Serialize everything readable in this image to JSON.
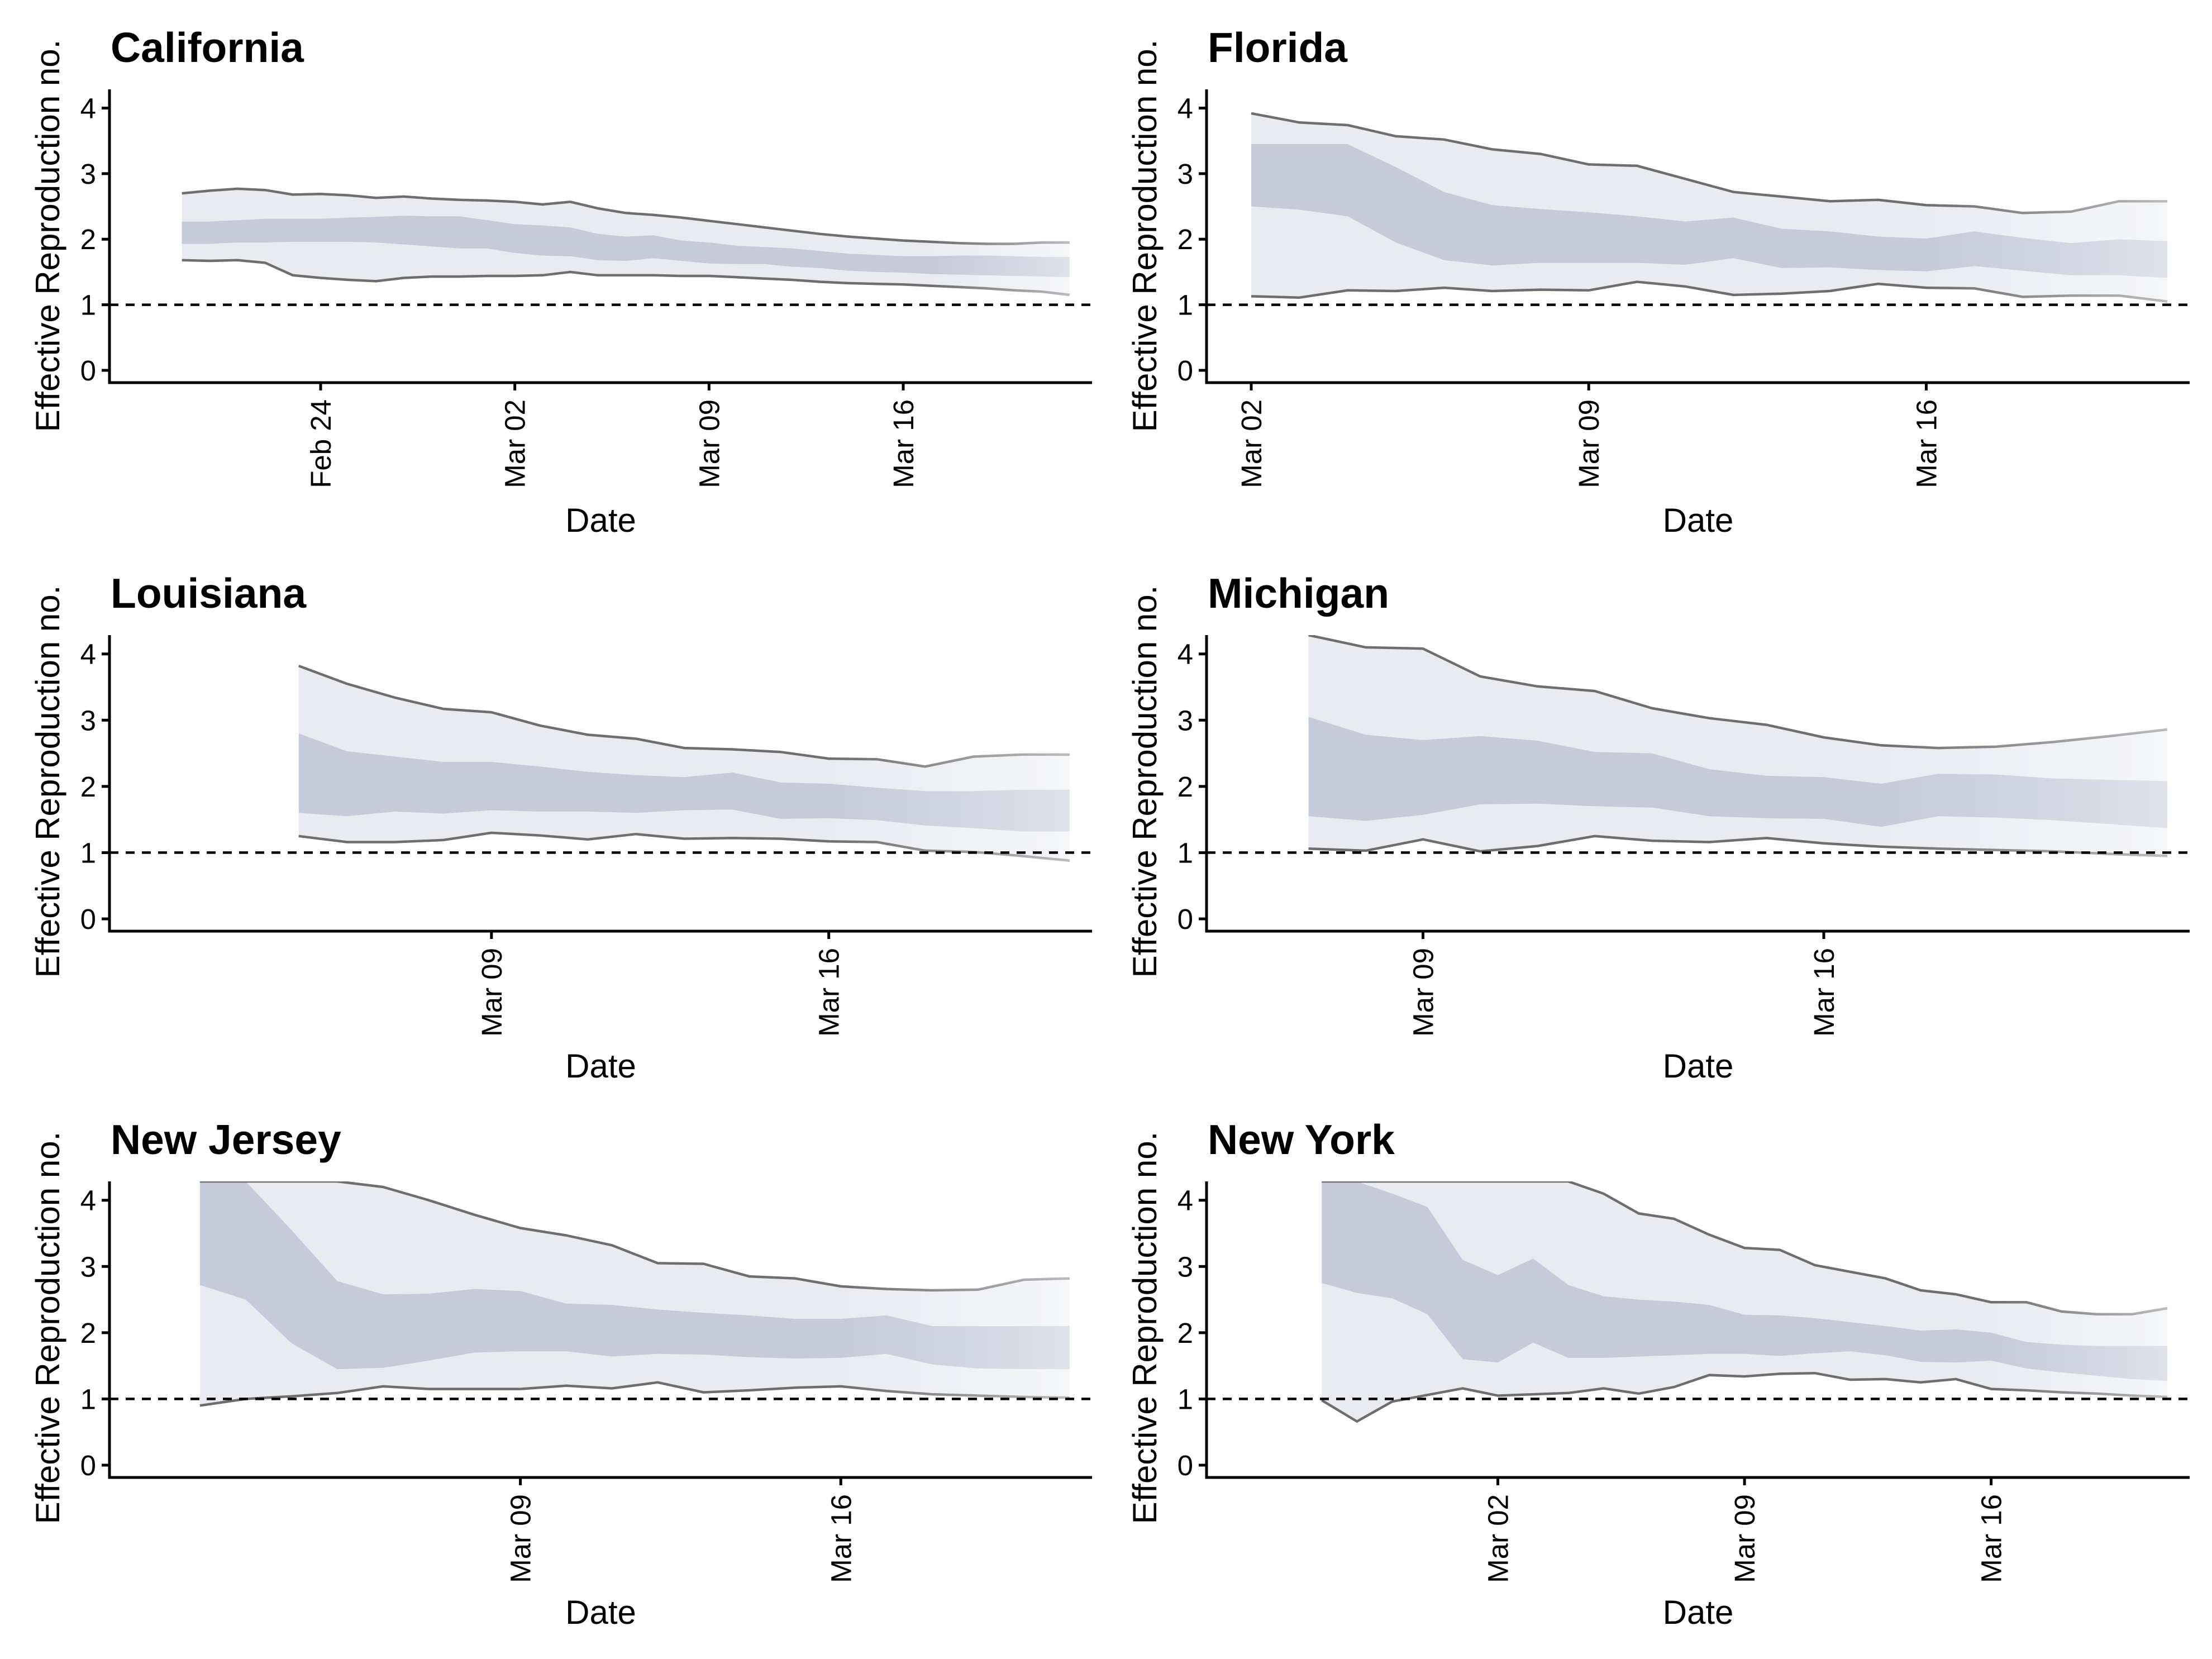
{
  "style": {
    "outer_band_color": "#e9ebf1",
    "inner_band_color": "#c6cadb",
    "ci_line_color": "#6e6e6e",
    "fade_color": "#ffffff"
  },
  "chart_data": [
    {
      "type": "area",
      "title": "California",
      "xlabel": "Date",
      "ylabel": "Effective Reproduction no.",
      "ylim": [
        0,
        4.2
      ],
      "yticks": [
        "0",
        "1",
        "2",
        "3",
        "4"
      ],
      "xlim": [
        "2020-02-18",
        "2020-03-22"
      ],
      "x_ticks": [
        {
          "date": "2020-02-24",
          "label": "Feb 24"
        },
        {
          "date": "2020-03-02",
          "label": "Mar 02"
        },
        {
          "date": "2020-03-09",
          "label": "Mar 09"
        },
        {
          "date": "2020-03-16",
          "label": "Mar 16"
        }
      ],
      "reference_line": 1,
      "x": [
        "2020-02-19",
        "2020-02-20",
        "2020-02-21",
        "2020-02-22",
        "2020-02-23",
        "2020-02-24",
        "2020-02-25",
        "2020-02-26",
        "2020-02-27",
        "2020-02-28",
        "2020-02-29",
        "2020-03-01",
        "2020-03-02",
        "2020-03-03",
        "2020-03-04",
        "2020-03-05",
        "2020-03-06",
        "2020-03-07",
        "2020-03-08",
        "2020-03-09",
        "2020-03-10",
        "2020-03-11",
        "2020-03-12",
        "2020-03-13",
        "2020-03-14",
        "2020-03-15",
        "2020-03-16",
        "2020-03-17",
        "2020-03-18",
        "2020-03-19",
        "2020-03-20",
        "2020-03-21",
        "2020-03-22"
      ],
      "outer_upper": [
        2.7,
        2.74,
        2.77,
        2.75,
        2.68,
        2.69,
        2.67,
        2.63,
        2.65,
        2.62,
        2.6,
        2.59,
        2.57,
        2.53,
        2.57,
        2.47,
        2.4,
        2.37,
        2.33,
        2.28,
        2.23,
        2.18,
        2.13,
        2.08,
        2.04,
        2.01,
        1.98,
        1.96,
        1.94,
        1.93,
        1.93,
        1.95,
        1.95
      ],
      "outer_lower": [
        1.68,
        1.67,
        1.68,
        1.64,
        1.45,
        1.41,
        1.38,
        1.36,
        1.41,
        1.43,
        1.43,
        1.44,
        1.44,
        1.45,
        1.5,
        1.45,
        1.45,
        1.45,
        1.44,
        1.44,
        1.42,
        1.4,
        1.38,
        1.35,
        1.33,
        1.32,
        1.31,
        1.29,
        1.27,
        1.25,
        1.22,
        1.2,
        1.15
      ],
      "inner_upper": [
        2.27,
        2.27,
        2.29,
        2.31,
        2.31,
        2.31,
        2.33,
        2.34,
        2.36,
        2.35,
        2.35,
        2.29,
        2.23,
        2.21,
        2.18,
        2.08,
        2.04,
        2.06,
        1.98,
        1.95,
        1.9,
        1.88,
        1.86,
        1.82,
        1.78,
        1.76,
        1.74,
        1.74,
        1.75,
        1.75,
        1.74,
        1.73,
        1.73
      ],
      "inner_lower": [
        1.93,
        1.93,
        1.95,
        1.95,
        1.96,
        1.96,
        1.96,
        1.95,
        1.92,
        1.89,
        1.86,
        1.86,
        1.79,
        1.75,
        1.74,
        1.68,
        1.67,
        1.71,
        1.67,
        1.63,
        1.62,
        1.62,
        1.58,
        1.56,
        1.52,
        1.5,
        1.49,
        1.47,
        1.46,
        1.45,
        1.44,
        1.43,
        1.42
      ]
    },
    {
      "type": "area",
      "title": "Florida",
      "xlabel": "Date",
      "ylabel": "Effective Reproduction no.",
      "ylim": [
        0,
        4.2
      ],
      "yticks": [
        "0",
        "1",
        "2",
        "3",
        "4"
      ],
      "xlim": [
        "2020-03-02",
        "2020-03-21"
      ],
      "x_ticks": [
        {
          "date": "2020-03-02",
          "label": "Mar 02"
        },
        {
          "date": "2020-03-09",
          "label": "Mar 09"
        },
        {
          "date": "2020-03-16",
          "label": "Mar 16"
        }
      ],
      "reference_line": 1,
      "x": [
        "2020-03-02",
        "2020-03-03",
        "2020-03-04",
        "2020-03-05",
        "2020-03-06",
        "2020-03-07",
        "2020-03-08",
        "2020-03-09",
        "2020-03-10",
        "2020-03-11",
        "2020-03-12",
        "2020-03-13",
        "2020-03-14",
        "2020-03-15",
        "2020-03-16",
        "2020-03-17",
        "2020-03-18",
        "2020-03-19",
        "2020-03-20",
        "2020-03-21"
      ],
      "outer_upper": [
        3.92,
        3.78,
        3.74,
        3.57,
        3.52,
        3.37,
        3.3,
        3.14,
        3.12,
        2.92,
        2.72,
        2.65,
        2.58,
        2.6,
        2.52,
        2.5,
        2.4,
        2.42,
        2.58,
        2.58
      ],
      "outer_lower": [
        1.13,
        1.11,
        1.22,
        1.21,
        1.26,
        1.21,
        1.23,
        1.22,
        1.35,
        1.28,
        1.15,
        1.17,
        1.21,
        1.32,
        1.26,
        1.25,
        1.12,
        1.14,
        1.14,
        1.05
      ],
      "inner_upper": [
        3.45,
        3.45,
        3.45,
        3.1,
        2.72,
        2.52,
        2.46,
        2.41,
        2.35,
        2.27,
        2.33,
        2.16,
        2.12,
        2.04,
        2.01,
        2.12,
        2.02,
        1.94,
        2.0,
        1.97
      ],
      "inner_lower": [
        2.5,
        2.45,
        2.35,
        1.95,
        1.68,
        1.6,
        1.64,
        1.64,
        1.64,
        1.61,
        1.71,
        1.56,
        1.57,
        1.53,
        1.51,
        1.59,
        1.52,
        1.45,
        1.45,
        1.41
      ]
    },
    {
      "type": "area",
      "title": "Louisiana",
      "xlabel": "Date",
      "ylabel": "Effective Reproduction no.",
      "ylim": [
        0,
        4.2
      ],
      "yticks": [
        "0",
        "1",
        "2",
        "3",
        "4"
      ],
      "xlim": [
        "2020-03-02",
        "2020-03-21"
      ],
      "x_ticks": [
        {
          "date": "2020-03-09",
          "label": "Mar 09"
        },
        {
          "date": "2020-03-16",
          "label": "Mar 16"
        }
      ],
      "reference_line": 1,
      "x": [
        "2020-03-05",
        "2020-03-06",
        "2020-03-07",
        "2020-03-08",
        "2020-03-09",
        "2020-03-10",
        "2020-03-11",
        "2020-03-12",
        "2020-03-13",
        "2020-03-14",
        "2020-03-15",
        "2020-03-16",
        "2020-03-17",
        "2020-03-18",
        "2020-03-19",
        "2020-03-20",
        "2020-03-21"
      ],
      "outer_upper": [
        3.82,
        3.55,
        3.34,
        3.17,
        3.12,
        2.92,
        2.78,
        2.72,
        2.58,
        2.56,
        2.52,
        2.42,
        2.41,
        2.3,
        2.45,
        2.48,
        2.48
      ],
      "outer_lower": [
        1.25,
        1.16,
        1.16,
        1.19,
        1.3,
        1.26,
        1.2,
        1.28,
        1.21,
        1.22,
        1.21,
        1.17,
        1.16,
        1.03,
        1.01,
        0.95,
        0.88
      ],
      "inner_upper": [
        2.8,
        2.53,
        2.45,
        2.37,
        2.37,
        2.3,
        2.22,
        2.17,
        2.14,
        2.21,
        2.06,
        2.04,
        1.98,
        1.93,
        1.93,
        1.95,
        1.95
      ],
      "inner_lower": [
        1.6,
        1.55,
        1.62,
        1.59,
        1.64,
        1.62,
        1.62,
        1.6,
        1.64,
        1.65,
        1.51,
        1.52,
        1.49,
        1.41,
        1.37,
        1.32,
        1.32
      ]
    },
    {
      "type": "area",
      "title": "Michigan",
      "xlabel": "Date",
      "ylabel": "Effective Reproduction no.",
      "ylim": [
        0,
        4.2
      ],
      "yticks": [
        "0",
        "1",
        "2",
        "3",
        "4"
      ],
      "xlim": [
        "2020-03-06",
        "2020-03-22"
      ],
      "x_ticks": [
        {
          "date": "2020-03-09",
          "label": "Mar 09"
        },
        {
          "date": "2020-03-16",
          "label": "Mar 16"
        }
      ],
      "reference_line": 1,
      "x": [
        "2020-03-07",
        "2020-03-08",
        "2020-03-09",
        "2020-03-10",
        "2020-03-11",
        "2020-03-12",
        "2020-03-13",
        "2020-03-14",
        "2020-03-15",
        "2020-03-16",
        "2020-03-17",
        "2020-03-18",
        "2020-03-19",
        "2020-03-20",
        "2020-03-21",
        "2020-03-22"
      ],
      "outer_upper": [
        4.3,
        4.1,
        4.08,
        3.66,
        3.51,
        3.44,
        3.18,
        3.03,
        2.93,
        2.74,
        2.62,
        2.58,
        2.6,
        2.67,
        2.76,
        2.86
      ],
      "outer_lower": [
        1.06,
        1.03,
        1.2,
        1.02,
        1.1,
        1.25,
        1.18,
        1.16,
        1.22,
        1.14,
        1.09,
        1.06,
        1.04,
        1.02,
        0.98,
        0.95
      ],
      "inner_upper": [
        3.05,
        2.78,
        2.7,
        2.76,
        2.69,
        2.52,
        2.5,
        2.26,
        2.16,
        2.14,
        2.04,
        2.19,
        2.18,
        2.12,
        2.1,
        2.08
      ],
      "inner_lower": [
        1.55,
        1.48,
        1.57,
        1.73,
        1.74,
        1.7,
        1.68,
        1.55,
        1.52,
        1.51,
        1.39,
        1.55,
        1.53,
        1.49,
        1.43,
        1.37
      ]
    },
    {
      "type": "area",
      "title": "New Jersey",
      "xlabel": "Date",
      "ylabel": "Effective Reproduction no.",
      "ylim": [
        0,
        4.2
      ],
      "yticks": [
        "0",
        "1",
        "2",
        "3",
        "4"
      ],
      "xlim": [
        "2020-03-01",
        "2020-03-21"
      ],
      "x_ticks": [
        {
          "date": "2020-03-09",
          "label": "Mar 09"
        },
        {
          "date": "2020-03-16",
          "label": "Mar 16"
        }
      ],
      "reference_line": 1,
      "x": [
        "2020-03-02",
        "2020-03-03",
        "2020-03-04",
        "2020-03-05",
        "2020-03-06",
        "2020-03-07",
        "2020-03-08",
        "2020-03-09",
        "2020-03-10",
        "2020-03-11",
        "2020-03-12",
        "2020-03-13",
        "2020-03-14",
        "2020-03-15",
        "2020-03-16",
        "2020-03-17",
        "2020-03-18",
        "2020-03-19",
        "2020-03-20",
        "2020-03-21"
      ],
      "outer_upper": [
        4.4,
        4.4,
        4.4,
        4.4,
        4.2,
        4.0,
        3.78,
        3.58,
        3.47,
        3.32,
        3.05,
        3.04,
        2.85,
        2.82,
        2.7,
        2.66,
        2.64,
        2.65,
        2.8,
        2.82
      ],
      "outer_lower": [
        0.9,
        1.0,
        1.04,
        1.09,
        1.19,
        1.15,
        1.15,
        1.15,
        1.2,
        1.16,
        1.25,
        1.1,
        1.13,
        1.17,
        1.19,
        1.12,
        1.07,
        1.05,
        1.03,
        1.02
      ],
      "inner_upper": [
        4.4,
        4.4,
        3.55,
        2.78,
        2.58,
        2.59,
        2.66,
        2.63,
        2.44,
        2.42,
        2.35,
        2.3,
        2.26,
        2.21,
        2.21,
        2.26,
        2.1,
        2.1,
        2.1,
        2.1
      ],
      "inner_lower": [
        2.72,
        2.5,
        1.84,
        1.45,
        1.47,
        1.58,
        1.7,
        1.72,
        1.72,
        1.64,
        1.68,
        1.67,
        1.63,
        1.61,
        1.62,
        1.68,
        1.52,
        1.46,
        1.45,
        1.45
      ]
    },
    {
      "type": "area",
      "title": "New York",
      "xlabel": "Date",
      "ylabel": "Effective Reproduction no.",
      "ylim": [
        0,
        4.2
      ],
      "yticks": [
        "0",
        "1",
        "2",
        "3",
        "4"
      ],
      "xlim": [
        "2020-02-24",
        "2020-03-21"
      ],
      "x_ticks": [
        {
          "date": "2020-03-02",
          "label": "Mar 02"
        },
        {
          "date": "2020-03-09",
          "label": "Mar 09"
        },
        {
          "date": "2020-03-16",
          "label": "Mar 16"
        }
      ],
      "reference_line": 1,
      "x": [
        "2020-02-26",
        "2020-02-27",
        "2020-02-28",
        "2020-02-29",
        "2020-03-01",
        "2020-03-02",
        "2020-03-03",
        "2020-03-04",
        "2020-03-05",
        "2020-03-06",
        "2020-03-07",
        "2020-03-08",
        "2020-03-09",
        "2020-03-10",
        "2020-03-11",
        "2020-03-12",
        "2020-03-13",
        "2020-03-14",
        "2020-03-15",
        "2020-03-16",
        "2020-03-17",
        "2020-03-18",
        "2020-03-19",
        "2020-03-20",
        "2020-03-21"
      ],
      "outer_upper": [
        4.4,
        4.4,
        4.4,
        4.4,
        4.4,
        4.4,
        4.4,
        4.4,
        4.1,
        3.8,
        3.72,
        3.48,
        3.28,
        3.25,
        3.02,
        2.92,
        2.82,
        2.64,
        2.58,
        2.46,
        2.46,
        2.32,
        2.28,
        2.28,
        2.37
      ],
      "outer_lower": [
        0.98,
        0.66,
        0.96,
        1.06,
        1.16,
        1.05,
        1.07,
        1.09,
        1.16,
        1.08,
        1.18,
        1.36,
        1.34,
        1.38,
        1.39,
        1.29,
        1.3,
        1.25,
        1.3,
        1.15,
        1.13,
        1.1,
        1.08,
        1.05,
        1.03
      ],
      "inner_upper": [
        4.4,
        4.4,
        4.1,
        3.9,
        3.1,
        2.87,
        3.12,
        2.72,
        2.55,
        2.5,
        2.47,
        2.42,
        2.27,
        2.26,
        2.22,
        2.16,
        2.1,
        2.03,
        2.05,
        2.0,
        1.86,
        1.82,
        1.8,
        1.8,
        1.8
      ],
      "inner_lower": [
        2.75,
        2.6,
        2.52,
        2.28,
        1.6,
        1.55,
        1.85,
        1.62,
        1.62,
        1.64,
        1.66,
        1.68,
        1.68,
        1.65,
        1.69,
        1.72,
        1.66,
        1.56,
        1.55,
        1.58,
        1.46,
        1.4,
        1.35,
        1.3,
        1.27
      ]
    }
  ]
}
